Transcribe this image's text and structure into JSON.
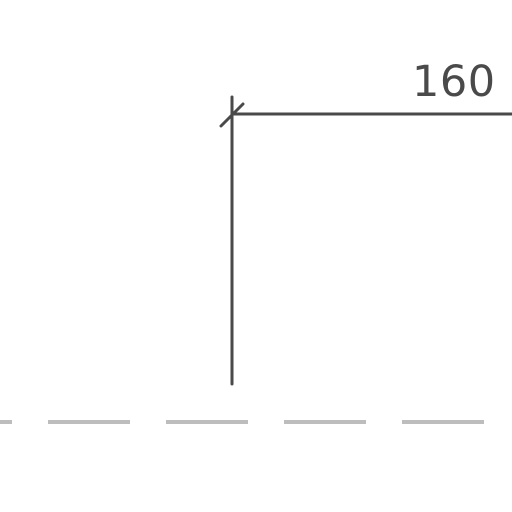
{
  "dimension": {
    "value_label": "160"
  },
  "colors": {
    "line": "#4a4a4a",
    "dashed_line": "#bdbdbd",
    "background": "#ffffff"
  }
}
